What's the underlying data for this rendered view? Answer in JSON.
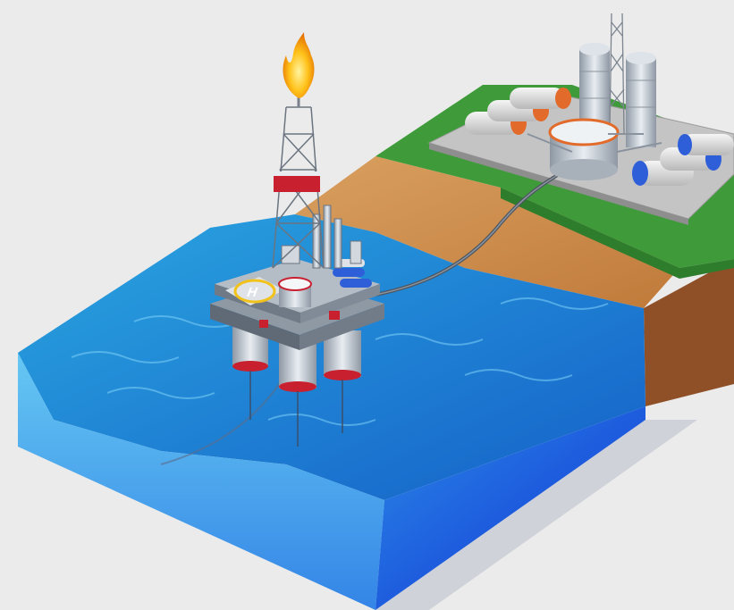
{
  "scene": {
    "description_free": true,
    "colors": {
      "background": "#ebebeb",
      "water_top": "#1f8fd0",
      "water_side_light": "#47b8f0",
      "water_side_deep": "#1436d8",
      "soil": "#c98a4a",
      "soil_side": "#9c5a2e",
      "grass": "#3f9b3a",
      "concrete": "#bfbfbf",
      "tank_orange": "#e26a2a",
      "tank_blue": "#2f5fd8",
      "steel": "#c9d0d8",
      "rig_red": "#c8202e",
      "helipad_yellow": "#f2c21c",
      "flame": "#ffb000"
    },
    "icons": {
      "rig": "offshore-oil-rig-icon",
      "refinery": "onshore-refinery-icon",
      "pipeline": "pipeline-icon",
      "helipad": "helipad-icon",
      "flame": "gas-flare-icon"
    },
    "helipad_letter": "H"
  }
}
